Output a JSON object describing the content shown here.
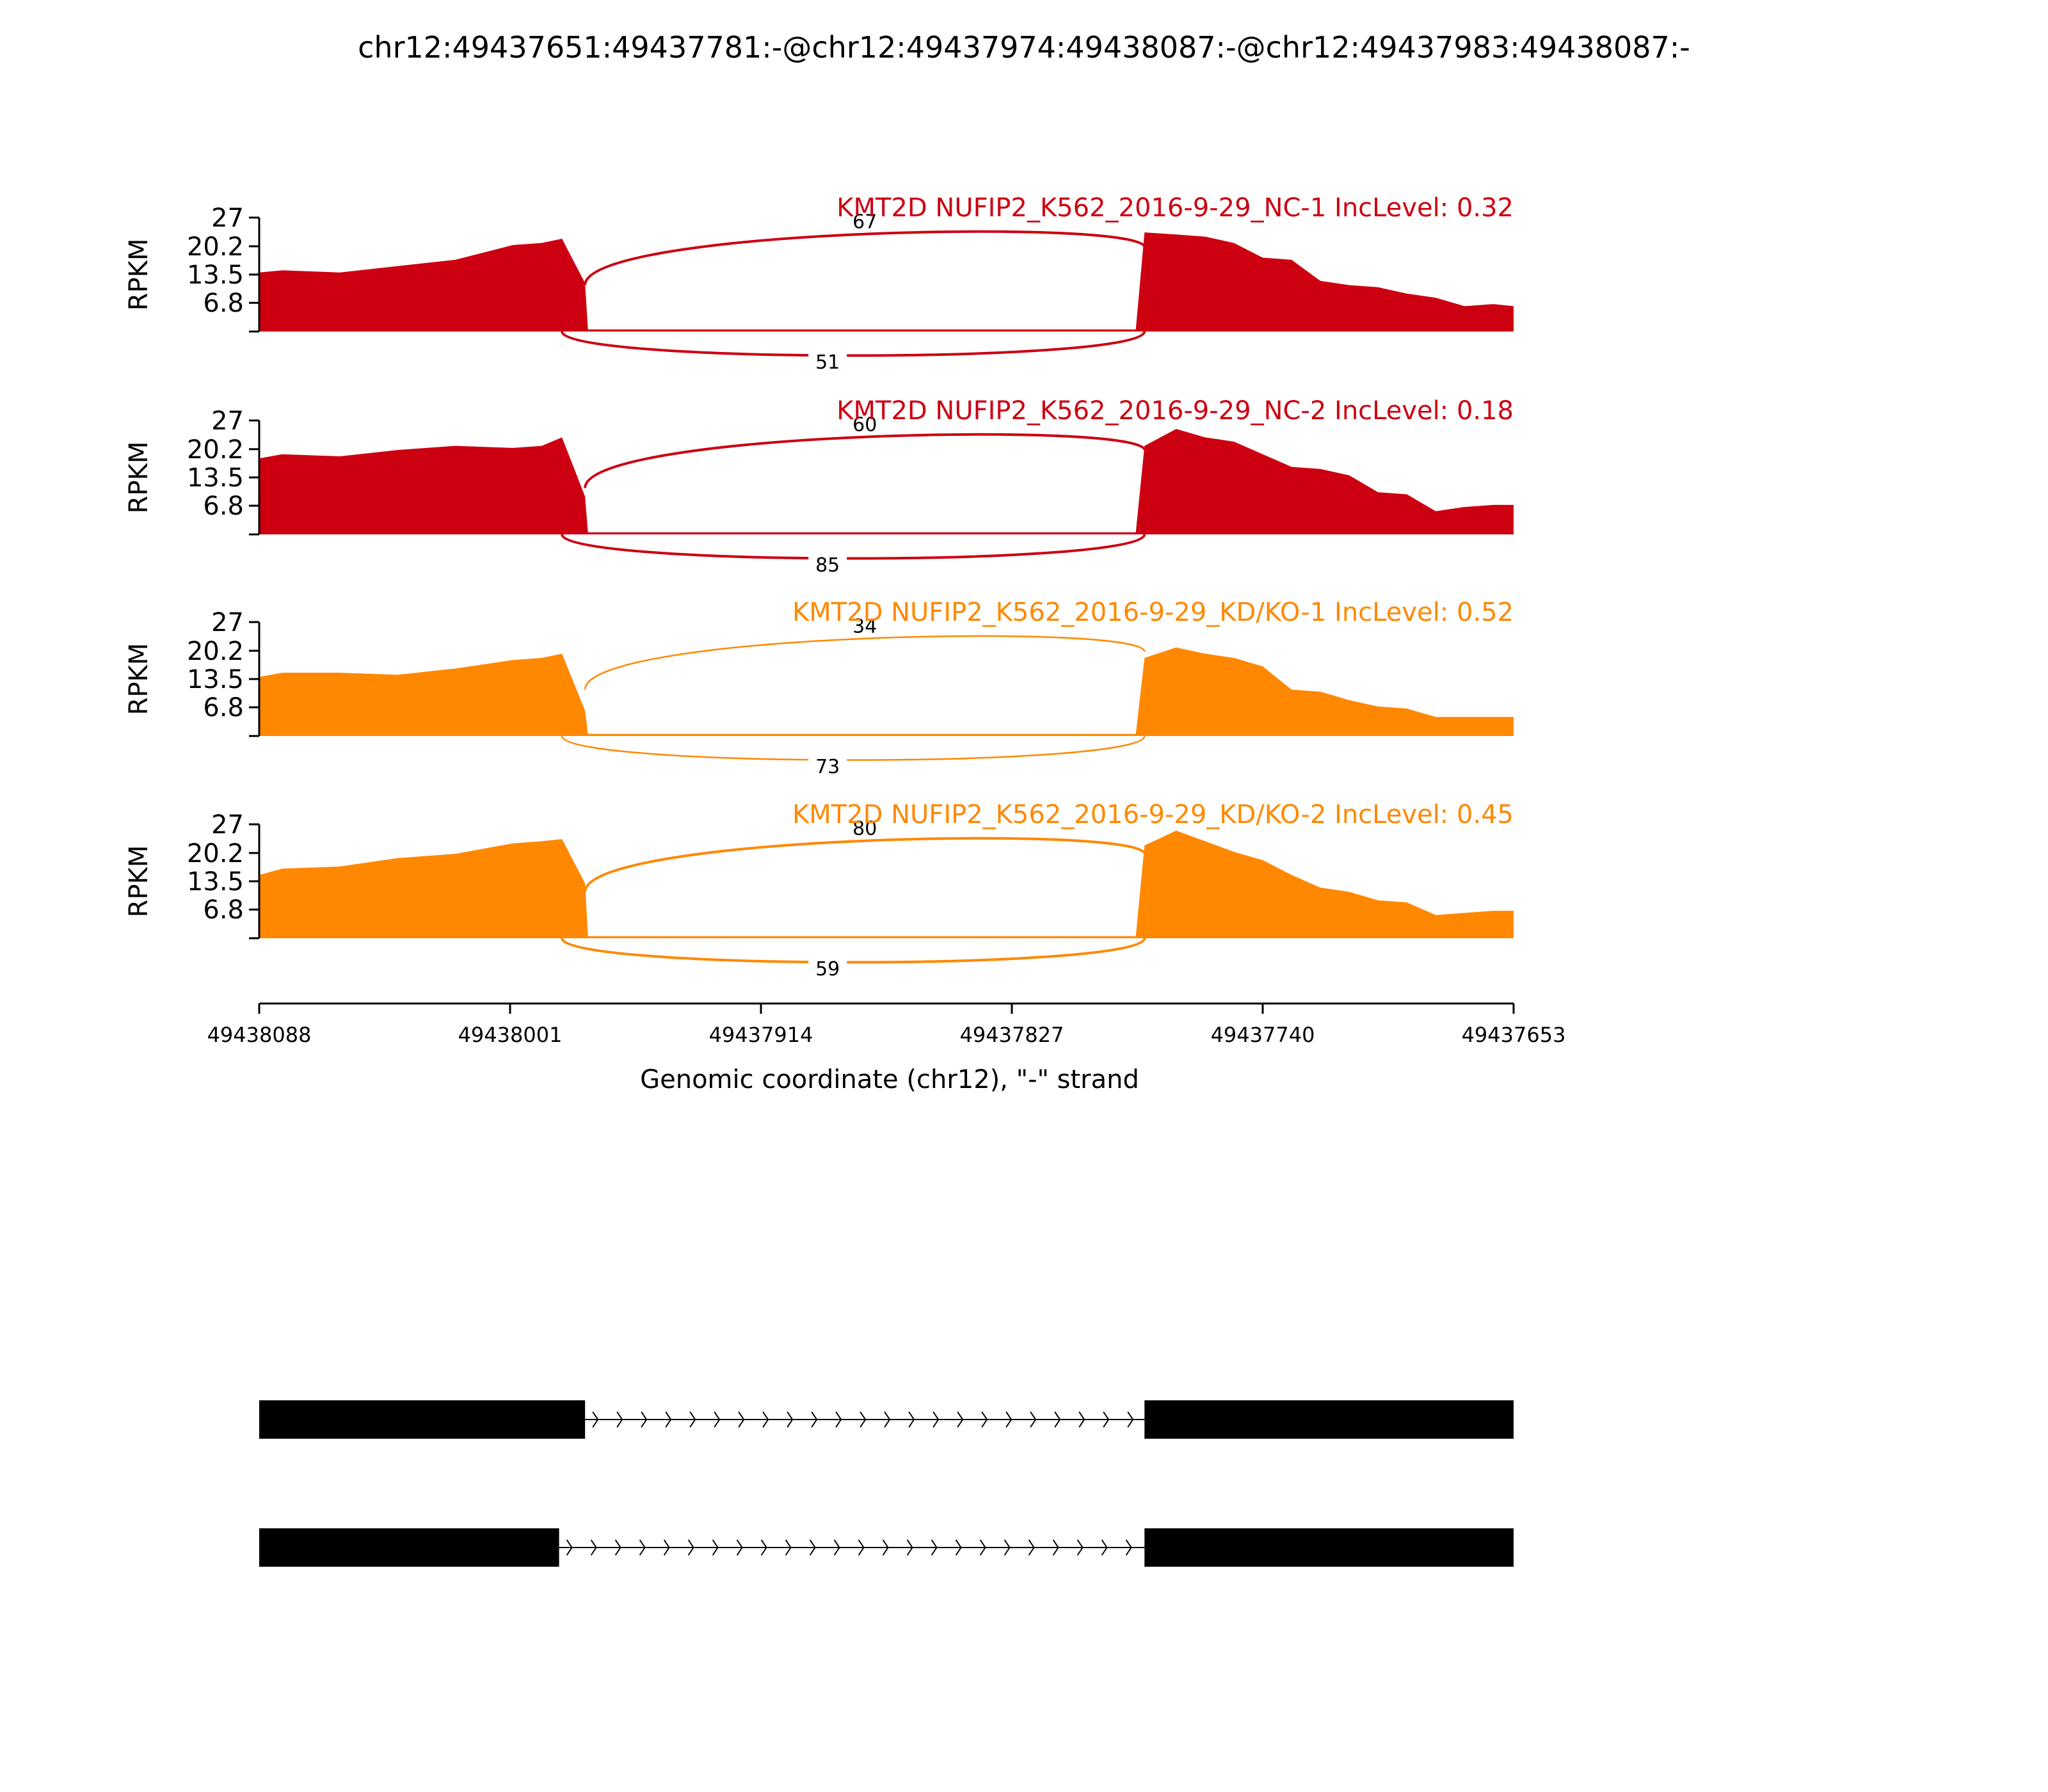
{
  "figure": {
    "title": "chr12:49437651:49437781:-@chr12:49437974:49438087:-@chr12:49437983:49438087:-",
    "xlabel": "Genomic coordinate (chr12), \"-\" strand",
    "ylabel": "RPKM",
    "background": "#ffffff"
  },
  "chart_data": {
    "type": "area",
    "title": "chr12:49437651:49437781:-@chr12:49437974:49438087:-@chr12:49437983:49438087:-",
    "xlabel": "Genomic coordinate (chr12), \"-\" strand",
    "ylabel": "RPKM",
    "x_reversed": true,
    "xlim": [
      49438088,
      49437653
    ],
    "x_ticks": [
      49438088,
      49438001,
      49437914,
      49437827,
      49437740,
      49437653
    ],
    "x_tick_labels": [
      "49438088",
      "49438001",
      "49437914",
      "49437827",
      "49437740",
      "49437653"
    ],
    "ylim": [
      0,
      27
    ],
    "y_ticks": [
      6.8,
      13.5,
      20.2,
      27
    ],
    "y_tick_labels": [
      "6.8",
      "13.5",
      "20.2",
      "27"
    ],
    "series": [
      {
        "name": "KMT2D NUFIP2_K562_2016-9-29_NC-1 IncLevel: 0.32",
        "color": "#cc0011",
        "x": [
          49438088,
          49438080,
          49438060,
          49438040,
          49438020,
          49438000,
          49437990,
          49437983,
          49437975,
          49437974,
          49437784,
          49437781,
          49437770,
          49437760,
          49437750,
          49437740,
          49437730,
          49437720,
          49437710,
          49437700,
          49437690,
          49437680,
          49437670,
          49437660,
          49437653
        ],
        "y": [
          14,
          14.5,
          14,
          15.5,
          17,
          20.5,
          21,
          22,
          11.5,
          0.5,
          0.5,
          23.5,
          23,
          22.5,
          21,
          17.5,
          17,
          12,
          11,
          10.5,
          9,
          8,
          6,
          6.5,
          6
        ],
        "inclusion_junctions": [
          67,
          51
        ],
        "skipping_junction": null
      },
      {
        "name": "KMT2D NUFIP2_K562_2016-9-29_NC-2 IncLevel: 0.18",
        "color": "#cc0011",
        "x": [
          49438088,
          49438080,
          49438060,
          49438040,
          49438020,
          49438000,
          49437990,
          49437983,
          49437975,
          49437974,
          49437784,
          49437781,
          49437770,
          49437760,
          49437750,
          49437740,
          49437730,
          49437720,
          49437710,
          49437700,
          49437690,
          49437680,
          49437670,
          49437660,
          49437653
        ],
        "y": [
          18,
          19,
          18.5,
          20,
          21,
          20.5,
          21,
          23,
          9,
          0.5,
          0.5,
          21,
          25,
          23,
          22,
          19,
          16,
          15.5,
          14,
          10,
          9.5,
          5.5,
          6.5,
          7,
          7
        ],
        "inclusion_junctions": [
          60,
          85
        ],
        "skipping_junction": null
      },
      {
        "name": "KMT2D NUFIP2_K562_2016-9-29_KD/KO-1 IncLevel: 0.52",
        "color": "#ff8800",
        "x": [
          49438088,
          49438080,
          49438060,
          49438040,
          49438020,
          49438000,
          49437990,
          49437983,
          49437975,
          49437974,
          49437784,
          49437781,
          49437770,
          49437760,
          49437750,
          49437740,
          49437730,
          49437720,
          49437710,
          49437700,
          49437690,
          49437680,
          49437670,
          49437660,
          49437653
        ],
        "y": [
          14,
          15,
          15,
          14.5,
          16,
          18,
          18.5,
          19.5,
          6,
          0.5,
          0.5,
          18.5,
          21,
          19.5,
          18.5,
          16.5,
          11,
          10.5,
          8.5,
          7,
          6.5,
          4.5,
          4.5,
          4.5,
          4.5
        ],
        "inclusion_junctions": [
          34,
          73
        ],
        "skipping_junction": null
      },
      {
        "name": "KMT2D NUFIP2_K562_2016-9-29_KD/KO-2 IncLevel: 0.45",
        "color": "#ff8800",
        "x": [
          49438088,
          49438080,
          49438060,
          49438040,
          49438020,
          49438000,
          49437990,
          49437983,
          49437975,
          49437974,
          49437784,
          49437781,
          49437770,
          49437760,
          49437750,
          49437740,
          49437730,
          49437720,
          49437710,
          49437700,
          49437690,
          49437680,
          49437670,
          49437660,
          49437653
        ],
        "y": [
          15,
          16.5,
          17,
          19,
          20,
          22.5,
          23,
          23.5,
          13,
          0.5,
          0.5,
          22,
          25.5,
          23,
          20.5,
          18.5,
          15,
          12,
          11,
          9,
          8.5,
          5.5,
          6,
          6.5,
          6.5
        ],
        "inclusion_junctions": [
          80,
          59
        ],
        "skipping_junction": null
      }
    ],
    "junctions": {
      "upper_label_note": "upper arcs connect 49437975 to 49437781",
      "lower_label_note": "lower arcs connect 49437983 to 49437781"
    },
    "isoforms": [
      {
        "exons": [
          [
            49438088,
            49437975
          ],
          [
            49437781,
            49437653
          ]
        ],
        "intron": [
          49437975,
          49437781
        ]
      },
      {
        "exons": [
          [
            49438088,
            49437984
          ],
          [
            49437781,
            49437653
          ]
        ],
        "intron": [
          49437984,
          49437781
        ]
      }
    ],
    "legend": "none",
    "grid": false
  }
}
